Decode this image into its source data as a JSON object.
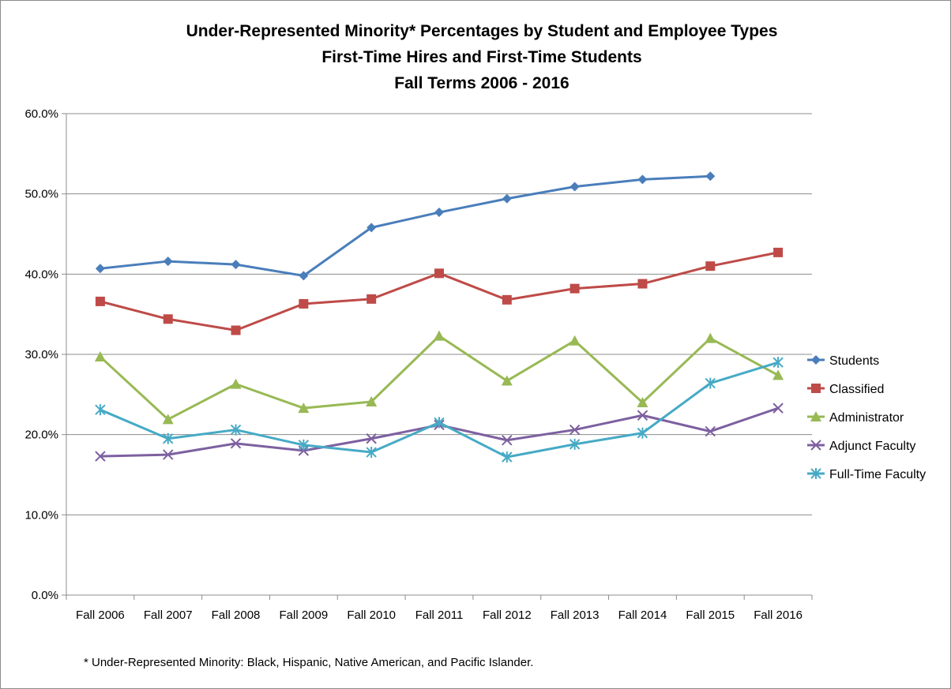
{
  "chart_data": {
    "type": "line",
    "title": [
      "Under-Represented Minority* Percentages by Student and Employee Types",
      "First-Time Hires and First-Time Students",
      "Fall Terms 2006 - 2016"
    ],
    "categories": [
      "Fall 2006",
      "Fall 2007",
      "Fall 2008",
      "Fall 2009",
      "Fall 2010",
      "Fall 2011",
      "Fall 2012",
      "Fall 2013",
      "Fall 2014",
      "Fall 2015",
      "Fall 2016"
    ],
    "ylim": [
      0,
      60
    ],
    "yticks": [
      0,
      10,
      20,
      30,
      40,
      50,
      60
    ],
    "ytick_labels": [
      "0.0%",
      "10.0%",
      "20.0%",
      "30.0%",
      "40.0%",
      "50.0%",
      "60.0%"
    ],
    "grid": "horizontal",
    "legend_position": "right",
    "series": [
      {
        "name": "Students",
        "color": "#4a7ebb",
        "marker": "diamond",
        "values": [
          40.7,
          41.6,
          41.2,
          39.8,
          45.8,
          47.7,
          49.4,
          50.9,
          51.8,
          52.2,
          null
        ]
      },
      {
        "name": "Classified",
        "color": "#be4b48",
        "marker": "square",
        "values": [
          36.6,
          34.4,
          33.0,
          36.3,
          36.9,
          40.1,
          36.8,
          38.2,
          38.8,
          41.0,
          42.7
        ]
      },
      {
        "name": "Administrator",
        "color": "#98b954",
        "marker": "triangle",
        "values": [
          29.7,
          21.9,
          26.3,
          23.3,
          24.1,
          32.3,
          26.7,
          31.7,
          24.0,
          32.0,
          27.4
        ]
      },
      {
        "name": "Adjunct Faculty",
        "color": "#7d60a0",
        "marker": "x",
        "values": [
          17.3,
          17.5,
          18.9,
          18.0,
          19.5,
          21.2,
          19.3,
          20.6,
          22.4,
          20.4,
          23.3
        ]
      },
      {
        "name": "Full-Time Faculty",
        "color": "#46aac5",
        "marker": "asterisk",
        "values": [
          23.1,
          19.5,
          20.6,
          18.7,
          17.8,
          21.5,
          17.2,
          18.8,
          20.2,
          26.4,
          29.0
        ]
      }
    ],
    "footnote": "* Under-Represented Minority: Black, Hispanic, Native American, and Pacific Islander."
  }
}
